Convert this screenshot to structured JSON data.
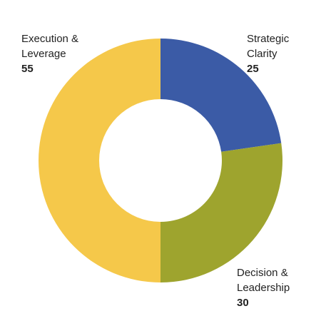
{
  "chart_data": {
    "type": "pie",
    "donut": true,
    "slices": [
      {
        "name": "Strategic\nClarity",
        "value": 25,
        "color": "#3b5ba6"
      },
      {
        "name": "Decision &\nLeadership",
        "value": 30,
        "color": "#9ea42e"
      },
      {
        "name": "Execution &\nLeverage",
        "value": 55,
        "color": "#f5c84a"
      }
    ]
  }
}
